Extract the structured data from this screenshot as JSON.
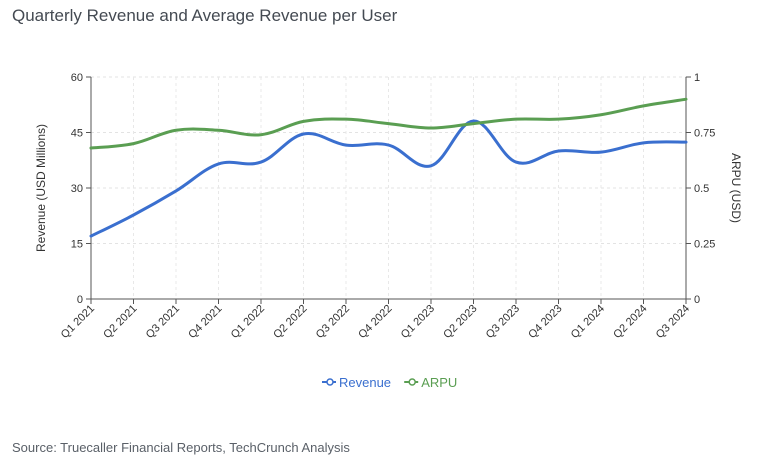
{
  "title": "Quarterly Revenue and Average Revenue per User",
  "source": "Source: Truecaller Financial Reports, TechCrunch Analysis",
  "chart_data": {
    "type": "line",
    "title": "Quarterly Revenue and Average Revenue per User",
    "categories": [
      "Q1 2021",
      "Q2 2021",
      "Q3 2021",
      "Q4 2021",
      "Q1 2022",
      "Q2 2022",
      "Q3 2022",
      "Q4 2022",
      "Q1 2023",
      "Q2 2023",
      "Q3 2023",
      "Q4 2023",
      "Q1 2024",
      "Q2 2024",
      "Q3 2024"
    ],
    "xlabel": "",
    "ylabel": "Revenue (USD Millions)",
    "y2label": "ARPU (USD)",
    "ylim": [
      0,
      60
    ],
    "y2lim": [
      0,
      1
    ],
    "yticks": [
      "0",
      "15",
      "30",
      "45",
      "60"
    ],
    "y2ticks": [
      "0",
      "0.25",
      "0.5",
      "0.75",
      "1"
    ],
    "grid": true,
    "legend_position": "bottom-center",
    "series": [
      {
        "name": "Revenue",
        "axis": "left",
        "color": "#3a6fcf",
        "values": [
          17.0,
          22.7,
          29.2,
          36.5,
          37.0,
          44.6,
          41.6,
          41.6,
          36.0,
          48.1,
          37.0,
          40.0,
          39.7,
          42.2,
          42.4
        ]
      },
      {
        "name": "ARPU",
        "axis": "right",
        "color": "#5a9e52",
        "values": [
          0.68,
          0.7,
          0.76,
          0.76,
          0.74,
          0.8,
          0.81,
          0.79,
          0.77,
          0.79,
          0.81,
          0.81,
          0.83,
          0.87,
          0.9
        ]
      }
    ]
  }
}
